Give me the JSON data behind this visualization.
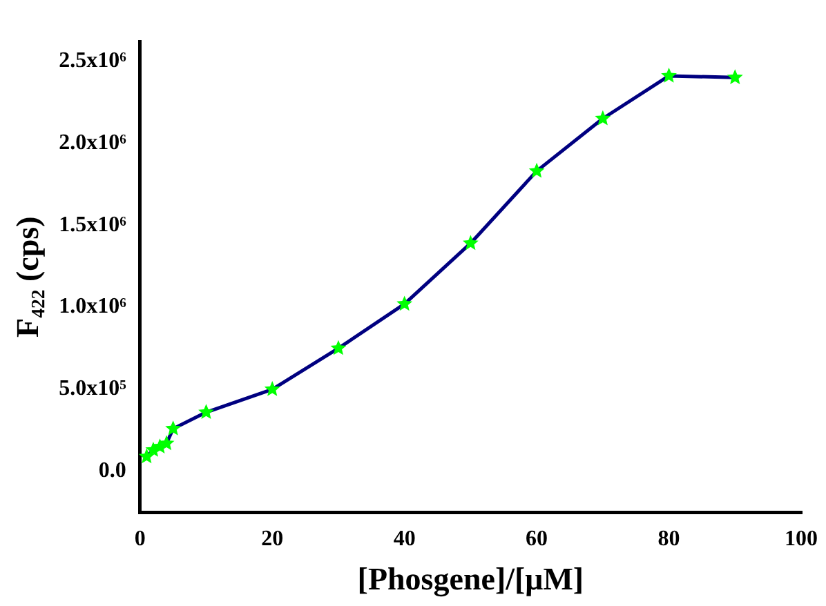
{
  "chart_data": {
    "type": "line",
    "xlabel": "[Phosgene]/[μM]",
    "ylabel": "F₄₂₂ (cps)",
    "x": [
      1,
      2,
      3,
      4,
      5,
      10,
      20,
      30,
      40,
      50,
      60,
      70,
      80,
      90
    ],
    "series": [
      {
        "color": "#000080",
        "colors": [
          "#00ff00",
          "#00ff00",
          "#00ff00",
          "#00ff00",
          "#00ff00",
          "#00ff00",
          "#00ff00",
          "#00ff00",
          "#00ff00",
          "#00ff00",
          "#00ff00",
          "#00ff00",
          "#00ff00",
          "#00ff00"
        ],
        "values": [
          90000,
          130000,
          150000,
          170000,
          260000,
          360000,
          500000,
          750000,
          1020000,
          1390000,
          1830000,
          2150000,
          2410000,
          2400000
        ]
      }
    ],
    "xlim": [
      0,
      100
    ],
    "xticks": [
      0,
      20,
      40,
      60,
      80,
      100
    ],
    "ylim": [
      -250000,
      2620000
    ],
    "yticks": [
      {
        "value": 0,
        "label": "0.0"
      },
      {
        "value": 500000,
        "label": "5.0x10⁵"
      },
      {
        "value": 1000000,
        "label": "1.0x10⁶"
      },
      {
        "value": 1500000,
        "label": "1.5x10⁶"
      },
      {
        "value": 2000000,
        "label": "2.0x10⁶"
      },
      {
        "value": 2500000,
        "label": "2.5x10⁶"
      }
    ],
    "grid": false,
    "legend": false,
    "marker": "star",
    "line_style": "solid"
  }
}
